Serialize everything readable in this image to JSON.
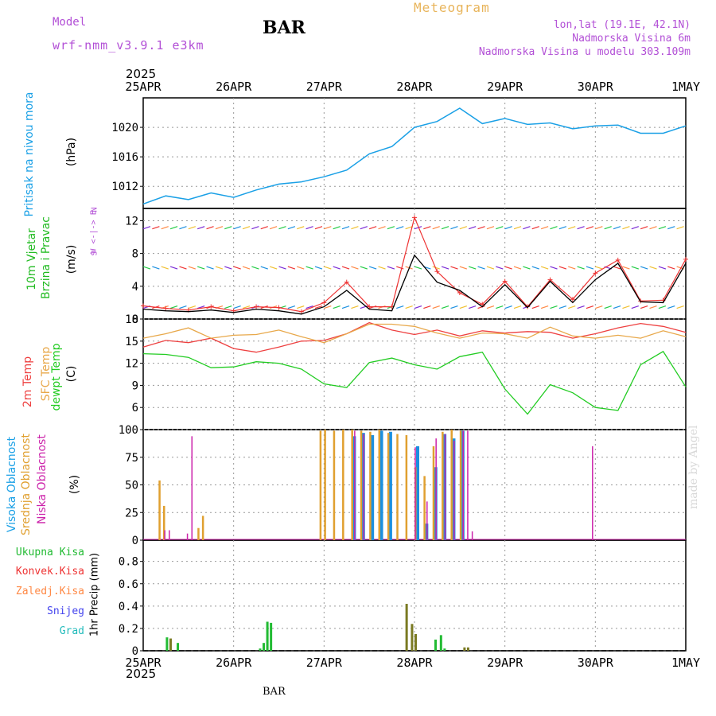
{
  "header": {
    "model_label": "Model",
    "model_name": "wrf-nmm_v3.9.1 e3km",
    "meteogram": "Meteogram",
    "station": "BAR",
    "lonlat": "lon,lat (19.1E, 42.1N)",
    "elevation": "Nadmorska Visina 6m",
    "model_elevation": "Nadmorska Visina u modelu 303.109m",
    "year_top": "2025",
    "year_bottom": "2025",
    "footer_station": "BAR",
    "made_by": "made by Angel"
  },
  "colors": {
    "pressure": "#1aa0e6",
    "t2m": "#ee4040",
    "sfc": "#e8a84a",
    "dewpoint": "#22cc22",
    "high_cloud": "#1a8fe0",
    "mid_cloud": "#e0a030",
    "low_cloud": "#cc22aa",
    "total_precip": "#22bb33",
    "conv_precip": "#ee3333",
    "frozen_precip": "#ff8844",
    "snow": "#4444ee",
    "graupel": "#22bbbb",
    "wind_max": "#ee3333",
    "wind_speed": "#000000"
  },
  "panel_labels": {
    "pressure": {
      "title": "Pritisak na nivou mora",
      "unit": "(hPa)"
    },
    "wind": {
      "title1": "10m Vjetar",
      "title2": "Brzina i Pravac",
      "unit": "(m/s)",
      "compass": "W <-|-> E",
      "compass_n": "N",
      "compass_s": "S"
    },
    "temp": {
      "title1": "2m Temp",
      "title2": "SFC Temp",
      "title3": "dewpt Temp",
      "unit": "(C)"
    },
    "cloud": {
      "title1": "Visoka Oblacnost",
      "title2": "Srednja Oblacnost",
      "title3": "Niska Oblacnost",
      "unit": "(%)"
    },
    "precip": {
      "l1": "Ukupna Kisa",
      "l2": "Konvek.Kisa",
      "l3": "Zaledj.Kisa",
      "l4": "Snijeg",
      "l5": "Grad",
      "unit": "1hr Precip (mm)"
    }
  },
  "chart_data": [
    {
      "type": "line",
      "name": "pressure",
      "x_labels": [
        "25APR",
        "26APR",
        "27APR",
        "28APR",
        "29APR",
        "30APR",
        "1MAY"
      ],
      "ylim": [
        1009,
        1024
      ],
      "yticks": [
        1012,
        1016,
        1020
      ],
      "x": [
        0,
        0.25,
        0.5,
        0.75,
        1,
        1.25,
        1.5,
        1.75,
        2,
        2.25,
        2.5,
        2.75,
        3,
        3.25,
        3.5,
        3.75,
        4,
        4.25,
        4.5,
        4.75,
        5,
        5.25,
        5.5,
        5.75,
        6
      ],
      "values": [
        1009.6,
        1010.7,
        1010.2,
        1011.1,
        1010.5,
        1011.5,
        1012.3,
        1012.6,
        1013.3,
        1014.2,
        1016.4,
        1017.4,
        1020.0,
        1020.8,
        1022.6,
        1020.5,
        1021.2,
        1020.4,
        1020.6,
        1019.8,
        1020.2,
        1020.3,
        1019.2,
        1019.2,
        1020.2
      ]
    },
    {
      "type": "line",
      "name": "wind",
      "ylim": [
        0,
        13.5
      ],
      "yticks": [
        0,
        4,
        8,
        12
      ],
      "x": [
        0,
        0.25,
        0.5,
        0.75,
        1,
        1.25,
        1.5,
        1.75,
        2,
        2.25,
        2.5,
        2.75,
        3,
        3.25,
        3.5,
        3.75,
        4,
        4.25,
        4.5,
        4.75,
        5,
        5.25,
        5.5,
        5.75,
        6
      ],
      "series": [
        {
          "name": "speed",
          "values": [
            1.2,
            1.0,
            0.9,
            1.1,
            0.8,
            1.2,
            1.0,
            0.6,
            1.5,
            3.5,
            1.2,
            1.0,
            7.8,
            4.5,
            3.5,
            1.5,
            4.2,
            1.4,
            4.6,
            2.0,
            4.8,
            6.8,
            2.1,
            2.0,
            6.8
          ]
        },
        {
          "name": "gust",
          "values": [
            1.6,
            1.3,
            1.1,
            1.5,
            1.0,
            1.5,
            1.4,
            0.9,
            2.0,
            4.5,
            1.5,
            1.5,
            12.4,
            5.8,
            3.2,
            1.8,
            4.6,
            1.5,
            4.8,
            2.4,
            5.6,
            7.2,
            2.2,
            2.3,
            7.3
          ]
        }
      ],
      "barb_rows": [
        1.3,
        6.4,
        11.0
      ]
    },
    {
      "type": "line",
      "name": "temperature",
      "ylim": [
        3,
        18
      ],
      "yticks": [
        6,
        9,
        12,
        15,
        18
      ],
      "x": [
        0,
        0.25,
        0.5,
        0.75,
        1,
        1.25,
        1.5,
        1.75,
        2,
        2.25,
        2.5,
        2.75,
        3,
        3.25,
        3.5,
        3.75,
        4,
        4.25,
        4.5,
        4.75,
        5,
        5.25,
        5.5,
        5.75,
        6
      ],
      "series": [
        {
          "name": "t2m",
          "values": [
            14.2,
            15.1,
            14.8,
            15.4,
            14.0,
            13.5,
            14.2,
            15.0,
            15.1,
            16.0,
            17.5,
            16.5,
            15.9,
            16.5,
            15.7,
            16.4,
            16.1,
            16.3,
            16.2,
            15.4,
            16.0,
            16.8,
            17.4,
            17.0,
            16.2
          ]
        },
        {
          "name": "sfc",
          "values": [
            15.4,
            16.0,
            16.8,
            15.4,
            15.8,
            15.9,
            16.5,
            15.6,
            14.8,
            16.0,
            17.3,
            17.3,
            17.0,
            16.1,
            15.4,
            16.1,
            16.0,
            15.4,
            16.9,
            15.7,
            15.4,
            15.8,
            15.4,
            16.4,
            15.6
          ]
        },
        {
          "name": "dewpoint",
          "values": [
            13.3,
            13.2,
            12.8,
            11.4,
            11.5,
            12.2,
            12.0,
            11.2,
            9.2,
            8.7,
            12.1,
            12.7,
            11.8,
            11.2,
            12.9,
            13.5,
            8.5,
            5.1,
            9.1,
            8.0,
            6.0,
            5.6,
            11.8,
            13.6,
            8.8
          ]
        }
      ]
    },
    {
      "type": "bar",
      "name": "cloud",
      "ylim": [
        0,
        100
      ],
      "yticks": [
        0,
        25,
        50,
        75,
        100
      ],
      "series": [
        {
          "name": "high",
          "x": [
            2.3,
            2.4,
            2.5,
            2.6,
            2.7,
            3.0,
            3.1,
            3.2,
            3.3,
            3.4,
            3.5
          ],
          "values": [
            94,
            97,
            95,
            99,
            98,
            85,
            15,
            66,
            96,
            92,
            99
          ]
        },
        {
          "name": "mid",
          "x": [
            0.17,
            0.22,
            0.6,
            0.65,
            1.95,
            2.0,
            2.1,
            2.2,
            2.3,
            2.4,
            2.5,
            2.6,
            2.7,
            2.8,
            2.9,
            3.0,
            3.1,
            3.2,
            3.3,
            3.4,
            3.5
          ],
          "values": [
            54,
            31,
            11,
            22,
            99,
            100,
            99,
            100,
            100,
            99,
            98,
            100,
            97,
            96,
            95,
            66,
            58,
            85,
            98,
            100,
            99
          ]
        },
        {
          "name": "low",
          "x": [
            0.25,
            0.3,
            0.5,
            0.55,
            2.35,
            2.45,
            3.02,
            3.15,
            3.25,
            3.35,
            3.45,
            3.55,
            3.6,
            3.65,
            4.98
          ],
          "values": [
            9,
            9,
            6,
            94,
            99,
            96,
            84,
            35,
            92,
            96,
            90,
            99,
            99,
            8,
            85
          ]
        }
      ]
    },
    {
      "type": "bar",
      "name": "precip",
      "ylim": [
        0,
        0.99
      ],
      "yticks": [
        0,
        0.2,
        0.4,
        0.6,
        0.8
      ],
      "series": [
        {
          "name": "total",
          "x": [
            0.25,
            0.37,
            1.28,
            1.32,
            1.36,
            1.4,
            3.22,
            3.28,
            3.32
          ],
          "values": [
            0.12,
            0.07,
            0.02,
            0.07,
            0.26,
            0.25,
            0.1,
            0.14,
            0.02
          ]
        },
        {
          "name": "convective",
          "x": [
            0.29,
            2.9,
            2.96,
            3.0,
            3.54,
            3.58
          ],
          "values": [
            0.11,
            0.42,
            0.24,
            0.15,
            0.03,
            0.03
          ]
        },
        {
          "name": "frozen",
          "x": [],
          "values": []
        },
        {
          "name": "snow",
          "x": [],
          "values": []
        },
        {
          "name": "graupel",
          "x": [],
          "values": []
        }
      ]
    }
  ]
}
